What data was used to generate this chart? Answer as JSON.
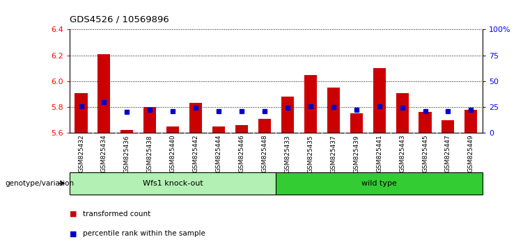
{
  "title": "GDS4526 / 10569896",
  "samples": [
    "GSM825432",
    "GSM825434",
    "GSM825436",
    "GSM825438",
    "GSM825440",
    "GSM825442",
    "GSM825444",
    "GSM825446",
    "GSM825448",
    "GSM825433",
    "GSM825435",
    "GSM825437",
    "GSM825439",
    "GSM825441",
    "GSM825443",
    "GSM825445",
    "GSM825447",
    "GSM825449"
  ],
  "red_values": [
    5.91,
    6.21,
    5.62,
    5.8,
    5.65,
    5.83,
    5.65,
    5.66,
    5.71,
    5.88,
    6.05,
    5.95,
    5.75,
    6.1,
    5.91,
    5.76,
    5.7,
    5.78
  ],
  "blue_values": [
    26,
    30,
    20,
    22,
    21,
    24,
    21,
    21,
    21,
    24,
    26,
    25,
    22,
    26,
    24,
    21,
    21,
    22
  ],
  "ylim_left": [
    5.6,
    6.4
  ],
  "ylim_right": [
    0,
    100
  ],
  "yticks_left": [
    5.6,
    5.8,
    6.0,
    6.2,
    6.4
  ],
  "yticks_right": [
    0,
    25,
    50,
    75,
    100
  ],
  "ytick_labels_right": [
    "0",
    "25",
    "50",
    "75",
    "100%"
  ],
  "group1_label": "Wfs1 knock-out",
  "group2_label": "wild type",
  "group1_count": 9,
  "group2_count": 9,
  "group1_color": "#b3f0b3",
  "group2_color": "#33cc33",
  "legend_red": "transformed count",
  "legend_blue": "percentile rank within the sample",
  "bar_color": "#CC0000",
  "dot_color": "#0000CC",
  "bg_color": "#FFFFFF",
  "plot_bg": "#FFFFFF",
  "grid_color": "#000000",
  "xtick_bg": "#CCCCCC"
}
